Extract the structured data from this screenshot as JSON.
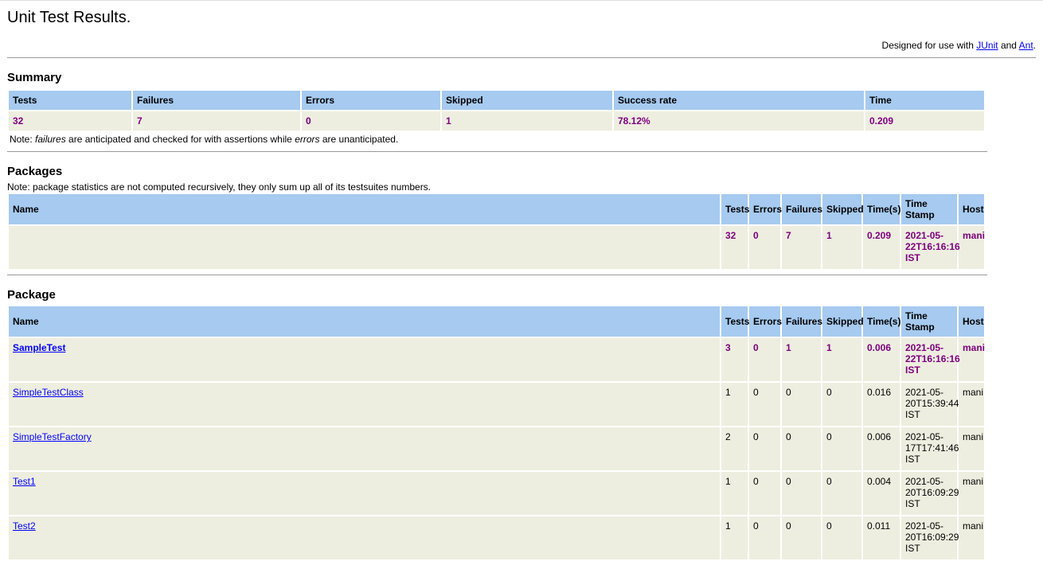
{
  "title": "Unit Test Results.",
  "designed": {
    "prefix": "Designed for use with ",
    "junit": "JUnit",
    "and": " and ",
    "ant": "Ant",
    "suffix": "."
  },
  "summary": {
    "heading": "Summary",
    "headers": [
      "Tests",
      "Failures",
      "Errors",
      "Skipped",
      "Success rate",
      "Time"
    ],
    "values": [
      "32",
      "7",
      "0",
      "1",
      "78.12%",
      "0.209"
    ],
    "note": {
      "a": "Note: ",
      "b": "failures",
      "c": " are anticipated and checked for with assertions while ",
      "d": "errors",
      "e": " are unanticipated."
    }
  },
  "packages": {
    "heading": "Packages",
    "note": "Note: package statistics are not computed recursively, they only sum up all of its testsuites numbers.",
    "headers": [
      "Name",
      "Tests",
      "Errors",
      "Failures",
      "Skipped",
      "Time(s)",
      "Time Stamp",
      "Host"
    ],
    "rows": [
      {
        "name": "",
        "tests": "32",
        "errors": "0",
        "failures": "7",
        "skipped": "1",
        "time": "0.209",
        "timestamp": "2021-05-22T16:16:16 IST",
        "host": "mani"
      }
    ]
  },
  "package": {
    "heading": "Package",
    "headers": [
      "Name",
      "Tests",
      "Errors",
      "Failures",
      "Skipped",
      "Time(s)",
      "Time Stamp",
      "Host"
    ],
    "rows": [
      {
        "name": "SampleTest",
        "tests": "3",
        "errors": "0",
        "failures": "1",
        "skipped": "1",
        "time": "0.006",
        "timestamp": "2021-05-22T16:16:16 IST",
        "host": "mani",
        "status": "error"
      },
      {
        "name": "SimpleTestClass",
        "tests": "1",
        "errors": "0",
        "failures": "0",
        "skipped": "0",
        "time": "0.016",
        "timestamp": "2021-05-20T15:39:44 IST",
        "host": "mani",
        "status": "pass"
      },
      {
        "name": "SimpleTestFactory",
        "tests": "2",
        "errors": "0",
        "failures": "0",
        "skipped": "0",
        "time": "0.006",
        "timestamp": "2021-05-17T17:41:46 IST",
        "host": "mani",
        "status": "pass"
      },
      {
        "name": "Test1",
        "tests": "1",
        "errors": "0",
        "failures": "0",
        "skipped": "0",
        "time": "0.004",
        "timestamp": "2021-05-20T16:09:29 IST",
        "host": "mani",
        "status": "pass"
      },
      {
        "name": "Test2",
        "tests": "1",
        "errors": "0",
        "failures": "0",
        "skipped": "0",
        "time": "0.011",
        "timestamp": "2021-05-20T16:09:29 IST",
        "host": "mani",
        "status": "pass"
      }
    ]
  },
  "colors": {
    "header_bg": "#a6caf0",
    "row_bg": "#eeeee0",
    "error_text": "#800080",
    "link": "#0000ff"
  }
}
